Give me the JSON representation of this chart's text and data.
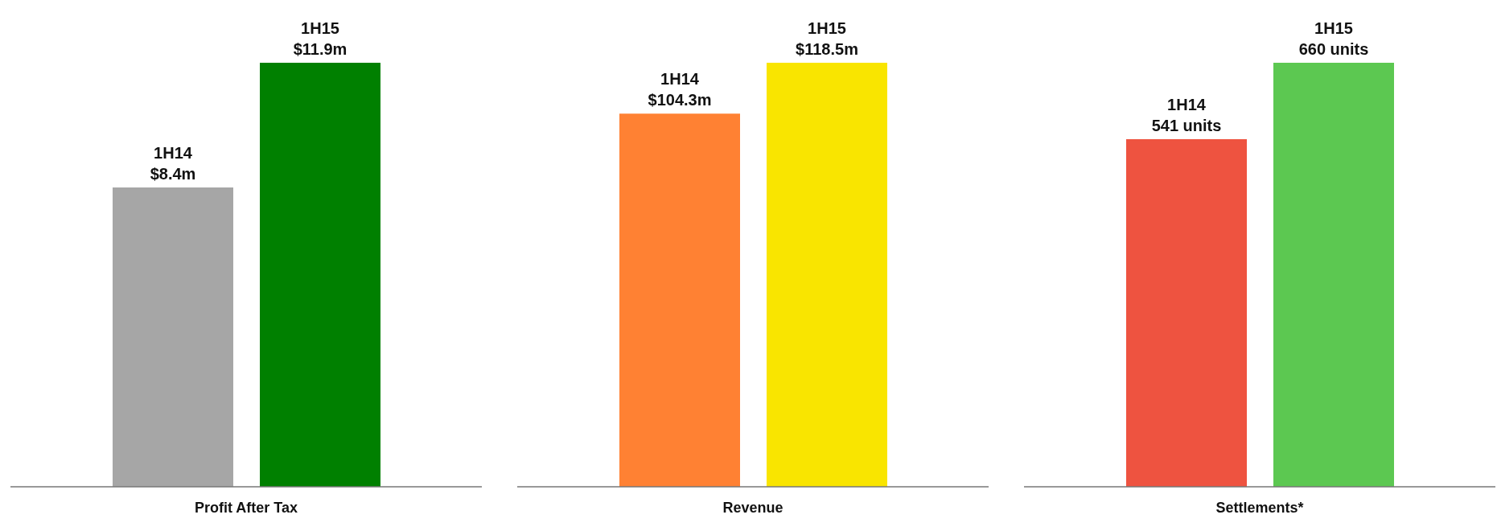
{
  "chart_data": [
    {
      "type": "bar",
      "xlabel": "Profit After Tax",
      "categories": [
        "1H14",
        "1H15"
      ],
      "values": [
        8.4,
        11.9
      ],
      "value_labels": [
        "$8.4m",
        "$11.9m"
      ],
      "colors": [
        "#a6a6a6",
        "#008000"
      ],
      "tick_labels": false
    },
    {
      "type": "bar",
      "xlabel": "Revenue",
      "categories": [
        "1H14",
        "1H15"
      ],
      "values": [
        104.3,
        118.5
      ],
      "value_labels": [
        "$104.3m",
        "$118.5m"
      ],
      "colors": [
        "#ff8133",
        "#f9e500"
      ],
      "tick_labels": false
    },
    {
      "type": "bar",
      "xlabel": "Settlements*",
      "categories": [
        "1H14",
        "1H15"
      ],
      "values": [
        541,
        660
      ],
      "value_labels": [
        "541 units",
        "660 units"
      ],
      "colors": [
        "#ee5340",
        "#5cc851"
      ],
      "tick_labels": false
    }
  ]
}
